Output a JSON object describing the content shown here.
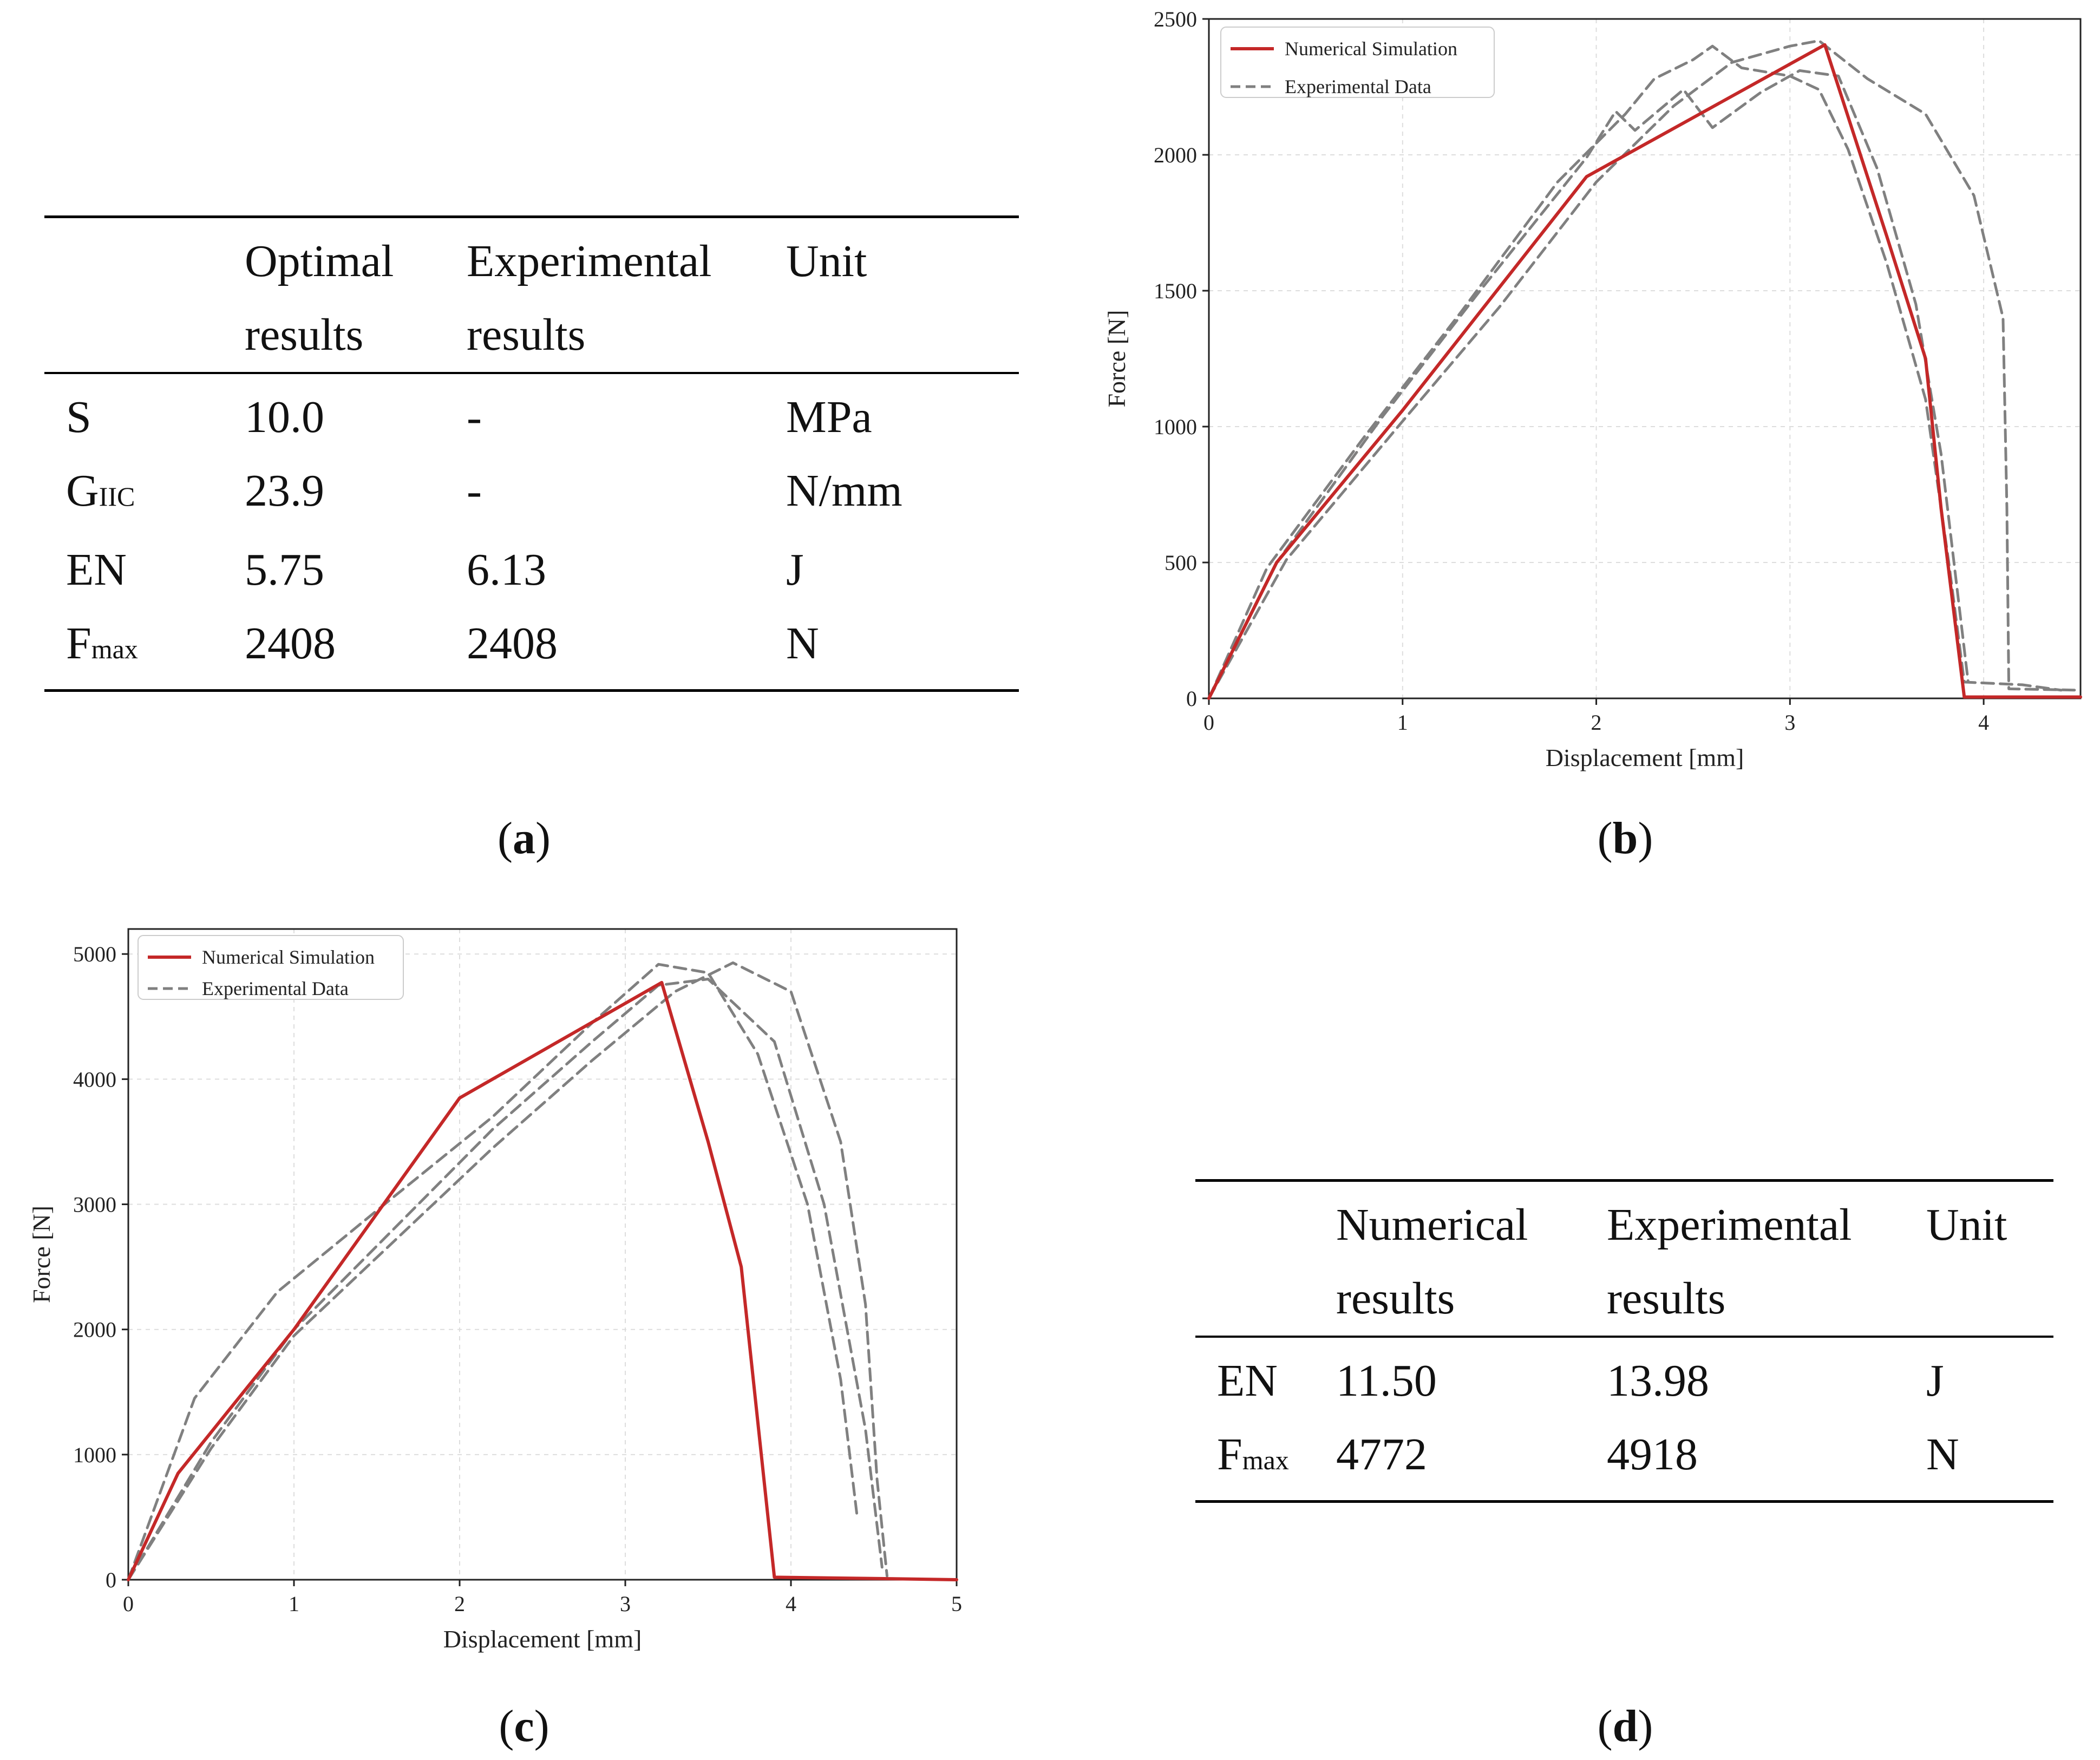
{
  "table_a": {
    "headers": [
      "",
      "Optimal results",
      "Experimental results",
      "Unit"
    ],
    "header_line1": [
      "",
      "Optimal",
      "Experimental",
      "Unit"
    ],
    "header_line2": [
      "",
      "results",
      "results",
      ""
    ],
    "rows": [
      {
        "param_main": "S",
        "param_sub": "",
        "optimal": "10.0",
        "experimental": "-",
        "unit": "MPa"
      },
      {
        "param_main": "G",
        "param_sub": "IIC",
        "optimal": "23.9",
        "experimental": "-",
        "unit": "N/mm"
      },
      {
        "param_main": "EN",
        "param_sub": "",
        "optimal": "5.75",
        "experimental": "6.13",
        "unit": "J"
      },
      {
        "param_main": "F",
        "param_sub": "max",
        "optimal": "2408",
        "experimental": "2408",
        "unit": "N"
      }
    ]
  },
  "table_d": {
    "header_line1": [
      "",
      "Numerical",
      "Experimental",
      "Unit"
    ],
    "header_line2": [
      "",
      "results",
      "results",
      ""
    ],
    "rows": [
      {
        "param_main": "EN",
        "param_sub": "",
        "numerical": "11.50",
        "experimental": "13.98",
        "unit": "J"
      },
      {
        "param_main": "F",
        "param_sub": "max",
        "numerical": "4772",
        "experimental": "4918",
        "unit": "N"
      }
    ]
  },
  "captions": {
    "a": {
      "open": "(",
      "letter": "a",
      "close": ")"
    },
    "b": {
      "open": "(",
      "letter": "b",
      "close": ")"
    },
    "c": {
      "open": "(",
      "letter": "c",
      "close": ")"
    },
    "d": {
      "open": "(",
      "letter": "d",
      "close": ")"
    }
  },
  "colors": {
    "numerical": "#c42828",
    "experimental": "#808080",
    "grid": "#dddddd",
    "axis": "#222222"
  },
  "chart_data": [
    {
      "id": "b",
      "type": "line",
      "title": "",
      "xlabel": "Displacement [mm]",
      "ylabel": "Force [N]",
      "xlim": [
        0,
        4.5
      ],
      "ylim": [
        0,
        2500
      ],
      "xticks": [
        0,
        1,
        2,
        3,
        4
      ],
      "yticks": [
        0,
        500,
        1000,
        1500,
        2000,
        2500
      ],
      "grid": true,
      "legend_position": "top-left",
      "series": [
        {
          "name": "Numerical Simulation",
          "style": "solid",
          "color": "#c42828",
          "show_in_legend": true,
          "x": [
            0,
            0.35,
            1.0,
            1.95,
            3.18,
            3.5,
            3.7,
            3.78,
            3.9,
            4.5
          ],
          "y": [
            0,
            500,
            1060,
            1920,
            2405,
            1700,
            1250,
            700,
            5,
            5
          ]
        },
        {
          "name": "Experimental Data",
          "style": "dashed",
          "color": "#808080",
          "show_in_legend": true,
          "x": [
            0,
            0.3,
            0.8,
            1.3,
            1.8,
            2.15,
            2.3,
            2.5,
            2.6,
            2.75,
            3.0,
            3.15,
            3.3,
            3.5,
            3.7,
            3.82,
            3.9,
            4.2,
            4.4
          ],
          "y": [
            0,
            480,
            960,
            1420,
            1900,
            2150,
            2280,
            2350,
            2400,
            2320,
            2290,
            2240,
            2020,
            1600,
            1100,
            500,
            60,
            50,
            30
          ]
        },
        {
          "name": "Experimental Data",
          "style": "dashed",
          "color": "#808080",
          "show_in_legend": false,
          "x": [
            0,
            0.35,
            0.9,
            1.4,
            1.95,
            2.1,
            2.2,
            2.35,
            2.45,
            2.6,
            2.85,
            3.05,
            3.25,
            3.45,
            3.65,
            3.78,
            3.88,
            3.92
          ],
          "y": [
            0,
            500,
            1040,
            1500,
            1990,
            2160,
            2090,
            2180,
            2240,
            2100,
            2230,
            2310,
            2290,
            1950,
            1450,
            900,
            300,
            60
          ]
        },
        {
          "name": "Experimental Data",
          "style": "dashed",
          "color": "#808080",
          "show_in_legend": false,
          "x": [
            0,
            0.4,
            1.0,
            1.5,
            2.0,
            2.4,
            2.7,
            3.0,
            3.15,
            3.4,
            3.7,
            3.95,
            4.1,
            4.12,
            4.13,
            4.5
          ],
          "y": [
            0,
            510,
            1020,
            1440,
            1900,
            2180,
            2340,
            2400,
            2420,
            2280,
            2150,
            1850,
            1400,
            700,
            35,
            30
          ]
        }
      ]
    },
    {
      "id": "c",
      "type": "line",
      "title": "",
      "xlabel": "Displacement [mm]",
      "ylabel": "Force [N]",
      "xlim": [
        0,
        5
      ],
      "ylim": [
        0,
        5200
      ],
      "xticks": [
        0,
        1,
        2,
        3,
        4,
        5
      ],
      "yticks": [
        0,
        1000,
        2000,
        3000,
        4000,
        5000
      ],
      "grid": true,
      "legend_position": "top-left",
      "series": [
        {
          "name": "Numerical Simulation",
          "style": "solid",
          "color": "#c42828",
          "show_in_legend": true,
          "x": [
            0,
            0.3,
            1.0,
            2.0,
            3.22,
            3.5,
            3.7,
            3.9,
            4.5,
            5.0
          ],
          "y": [
            0,
            850,
            2000,
            3850,
            4772,
            3500,
            2500,
            20,
            10,
            0
          ]
        },
        {
          "name": "Experimental Data",
          "style": "dashed",
          "color": "#808080",
          "show_in_legend": true,
          "x": [
            0,
            0.4,
            0.9,
            1.5,
            2.2,
            2.8,
            3.2,
            3.5,
            3.8,
            4.1,
            4.3,
            4.4
          ],
          "y": [
            0,
            1450,
            2300,
            2950,
            3700,
            4450,
            4918,
            4850,
            4200,
            3000,
            1600,
            500
          ]
        },
        {
          "name": "Experimental Data",
          "style": "dashed",
          "color": "#808080",
          "show_in_legend": false,
          "x": [
            0,
            0.5,
            1.0,
            1.6,
            2.2,
            2.8,
            3.2,
            3.5,
            3.9,
            4.2,
            4.45,
            4.55
          ],
          "y": [
            0,
            1100,
            2000,
            2800,
            3600,
            4300,
            4750,
            4800,
            4300,
            3000,
            1200,
            100
          ]
        },
        {
          "name": "Experimental Data",
          "style": "dashed",
          "color": "#808080",
          "show_in_legend": false,
          "x": [
            0,
            0.5,
            1.0,
            1.6,
            2.2,
            2.8,
            3.3,
            3.65,
            4.0,
            4.3,
            4.45,
            4.52,
            4.58
          ],
          "y": [
            0,
            1050,
            1950,
            2700,
            3450,
            4150,
            4700,
            4930,
            4700,
            3500,
            2200,
            800,
            30
          ]
        }
      ]
    }
  ]
}
